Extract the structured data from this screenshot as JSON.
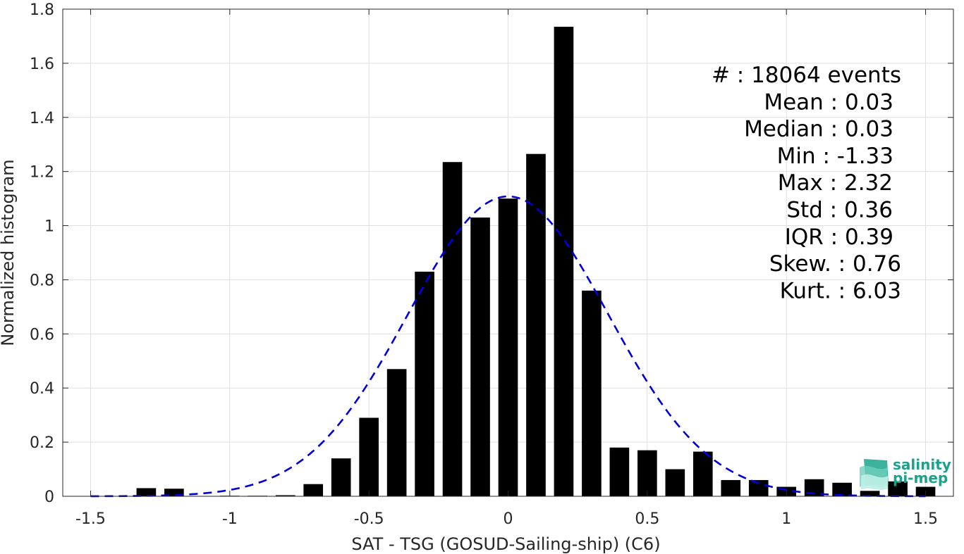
{
  "chart_data": {
    "type": "bar",
    "xlabel": "SAT - TSG (GOSUD-Sailing-ship) (C6)",
    "ylabel": "Normalized histogram",
    "xlim": [
      -1.6,
      1.6
    ],
    "ylim": [
      0,
      1.8
    ],
    "xticks": [
      -1.5,
      -1,
      -0.5,
      0,
      0.5,
      1,
      1.5
    ],
    "xtick_labels": [
      "-1.5",
      "-1",
      "-0.5",
      "0",
      "0.5",
      "1",
      "1.5"
    ],
    "yticks": [
      0,
      0.2,
      0.4,
      0.6,
      0.8,
      1,
      1.2,
      1.4,
      1.6,
      1.8
    ],
    "ytick_labels": [
      "0",
      "0.2",
      "0.4",
      "0.6",
      "0.8",
      "1",
      "1.2",
      "1.4",
      "1.6",
      "1.8"
    ],
    "grid": true,
    "bar_width": 0.07,
    "bars": [
      {
        "x": -1.3,
        "y": 0.03
      },
      {
        "x": -1.2,
        "y": 0.028
      },
      {
        "x": -1.0,
        "y": 0.002
      },
      {
        "x": -0.9,
        "y": 0.002
      },
      {
        "x": -0.8,
        "y": 0.004
      },
      {
        "x": -0.7,
        "y": 0.045
      },
      {
        "x": -0.6,
        "y": 0.14
      },
      {
        "x": -0.5,
        "y": 0.29
      },
      {
        "x": -0.4,
        "y": 0.47
      },
      {
        "x": -0.3,
        "y": 0.83
      },
      {
        "x": -0.2,
        "y": 1.235
      },
      {
        "x": -0.1,
        "y": 1.03
      },
      {
        "x": 0.0,
        "y": 1.1
      },
      {
        "x": 0.1,
        "y": 1.265
      },
      {
        "x": 0.2,
        "y": 1.735
      },
      {
        "x": 0.3,
        "y": 0.76
      },
      {
        "x": 0.4,
        "y": 0.18
      },
      {
        "x": 0.5,
        "y": 0.17
      },
      {
        "x": 0.6,
        "y": 0.1
      },
      {
        "x": 0.7,
        "y": 0.165
      },
      {
        "x": 0.8,
        "y": 0.06
      },
      {
        "x": 0.9,
        "y": 0.06
      },
      {
        "x": 1.0,
        "y": 0.035
      },
      {
        "x": 1.1,
        "y": 0.063
      },
      {
        "x": 1.2,
        "y": 0.05
      },
      {
        "x": 1.3,
        "y": 0.02
      },
      {
        "x": 1.4,
        "y": 0.055
      },
      {
        "x": 1.5,
        "y": 0.035
      }
    ],
    "fit_curve": {
      "style": "dashed",
      "color": "#0000dd",
      "mean": 0.0,
      "std": 0.36,
      "x_range": [
        -1.5,
        1.5
      ]
    },
    "stats": [
      "#  : 18064 events",
      "Mean : 0.03",
      "Median : 0.03",
      "Min : -1.33",
      "Max : 2.32",
      "Std : 0.36",
      "IQR : 0.39",
      "Skew. : 0.76",
      "Kurt. : 6.03"
    ],
    "colors": {
      "bar": "#000000",
      "curve": "#0000dd",
      "grid": "#dfdfdf",
      "axis": "#262626"
    }
  },
  "logo": {
    "line1": "salinity",
    "line2": "pi-mep",
    "color": "#1aa38a"
  }
}
